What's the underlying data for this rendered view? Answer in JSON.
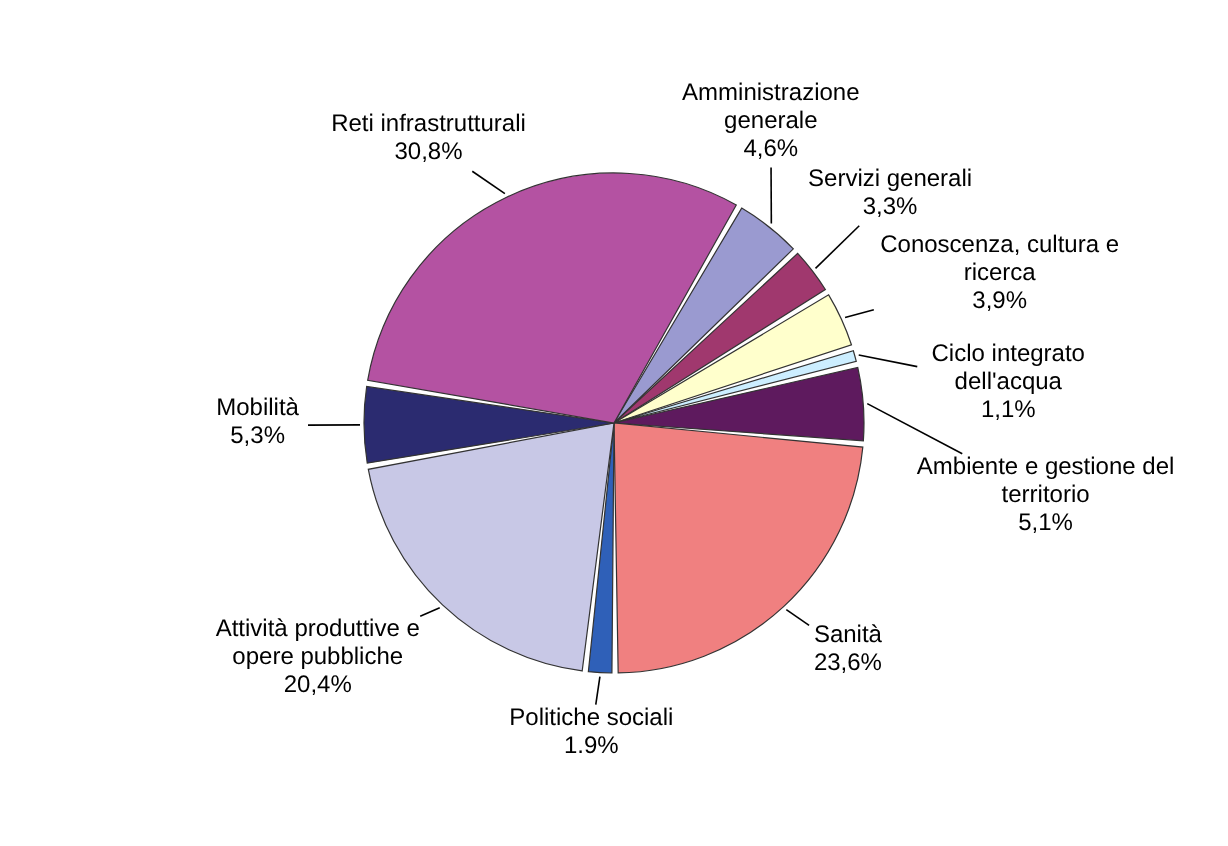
{
  "chart_data": {
    "type": "pie",
    "categories": [
      "Amministrazione generale",
      "Servizi generali",
      "Conoscenza, cultura e ricerca",
      "Ciclo integrato dell'acqua",
      "Ambiente e gestione del territorio",
      "Sanità",
      "Politiche sociali",
      "Attività produttive e opere pubbliche",
      "Mobilità",
      "Reti infrastrutturali"
    ],
    "values": [
      4.6,
      3.3,
      3.9,
      1.1,
      5.1,
      23.6,
      1.9,
      20.4,
      5.3,
      30.8
    ],
    "value_labels": [
      "4,6%",
      "3,3%",
      "3,9%",
      "1,1%",
      "5,1%",
      "23,6%",
      "1.9%",
      "20,4%",
      "5,3%",
      "30,8%"
    ],
    "colors": [
      "#9a9ad0",
      "#a0386e",
      "#ffffcc",
      "#cceeff",
      "#5e1a5e",
      "#f08080",
      "#2f60b8",
      "#c8c8e6",
      "#2b2b70",
      "#b452a2"
    ]
  }
}
